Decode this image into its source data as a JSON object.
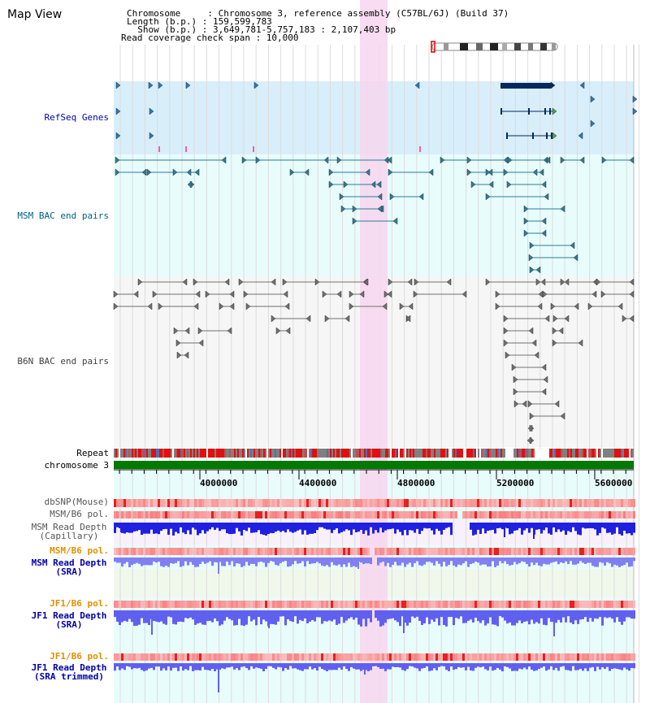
{
  "title": "Map View",
  "header": {
    "chromosome": "Chromosome     : Chromosome 3, reference assembly (C57BL/6J) (Build 37)",
    "length": "Length (b.p.) : 159,599,783",
    "show": "  Show (b.p.) : 3,649,781-5,757,183 : 2,107,403 bp",
    "coverage": "Read coverage check span : 10,000"
  },
  "tracks": {
    "refseq": "RefSeq Genes",
    "msm_bac": "MSM BAC end pairs",
    "b6n_bac": "B6N BAC end pairs",
    "repeat": "Repeat",
    "chromosome": "chromosome 3",
    "dbsnp": "dbSNP(Mouse)",
    "msm_b6_pol": "MSM/B6 pol.",
    "msm_depth_cap_1": "MSM Read Depth",
    "msm_depth_cap_2": "(Capillary)",
    "msm_b6_pol_sra": "MSM/B6 pol.",
    "msm_depth_sra_1": "MSM Read Depth",
    "msm_depth_sra_2": "(SRA)",
    "jf1_b6_pol": "JF1/B6 pol.",
    "jf1_depth_1": "JF1 Read Depth",
    "jf1_depth_2": "(SRA)",
    "jf1_b6_pol_trim": "JF1/B6 pol.",
    "jf1_trim_1": "JF1 Read Depth",
    "jf1_trim_2": "(SRA trimmed)"
  },
  "axis_ticks": [
    "4000000",
    "4400000",
    "4800000",
    "5200000",
    "5600000"
  ],
  "colors": {
    "refseq_bg": "#d8eefa",
    "msm_bac_bg": "#e8fcfc",
    "b6n_bg": "#f6f6f6",
    "lower_bg": "#e8fcfc",
    "highlight": "#f7d6ef",
    "chromosome_bar": "#007a00",
    "label_blue": "#0000aa",
    "label_teal": "#006080",
    "label_orange": "#e09000"
  }
}
